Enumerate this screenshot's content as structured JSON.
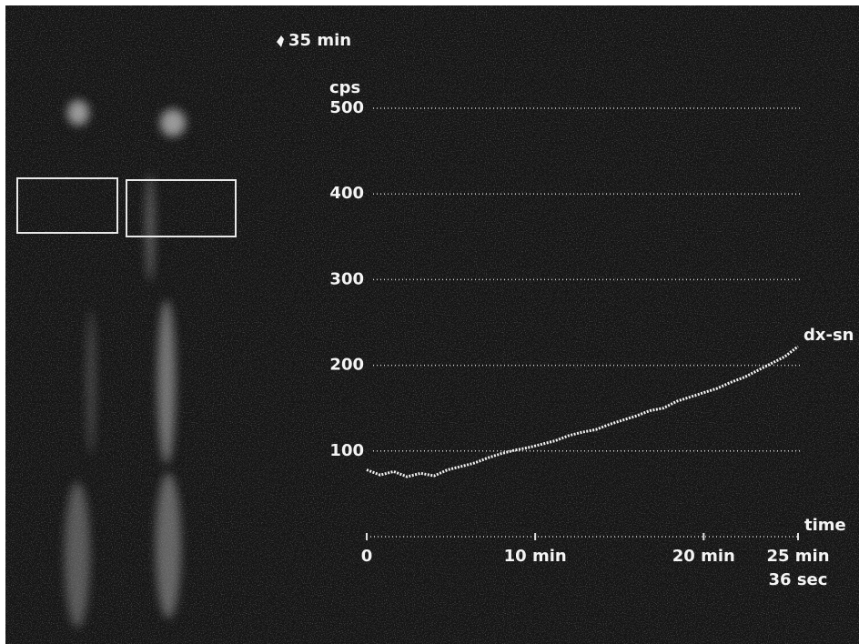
{
  "chart_data": {
    "type": "line",
    "marker_label": "35 min",
    "y_label": "cps",
    "x_label": "time",
    "ylim": [
      0,
      500
    ],
    "yticks": [
      100,
      200,
      300,
      400,
      500
    ],
    "xlim": [
      0,
      25.6
    ],
    "xticks": [
      {
        "value": 0,
        "label": "0"
      },
      {
        "value": 10,
        "label": "10 min"
      },
      {
        "value": 20,
        "label": "20 min"
      },
      {
        "value": 25.6,
        "label": "25 min 36 sec"
      }
    ],
    "grid": true,
    "x": [
      0,
      0.8,
      1.6,
      2.4,
      3.2,
      4,
      4.8,
      5.6,
      6.4,
      7.2,
      8,
      8.8,
      9.6,
      10.4,
      11.2,
      12,
      12.8,
      13.6,
      14.4,
      15.2,
      16,
      16.8,
      17.6,
      18.4,
      19.2,
      20,
      20.8,
      21.6,
      22.4,
      23.2,
      24,
      24.8,
      25.6
    ],
    "series": [
      {
        "name": "dx-sn",
        "color": "#f2f2f2",
        "values": [
          78,
          72,
          76,
          70,
          74,
          71,
          78,
          82,
          86,
          92,
          97,
          101,
          104,
          108,
          112,
          118,
          122,
          125,
          131,
          136,
          141,
          147,
          150,
          158,
          163,
          168,
          173,
          180,
          186,
          194,
          202,
          210,
          222
        ]
      }
    ]
  }
}
